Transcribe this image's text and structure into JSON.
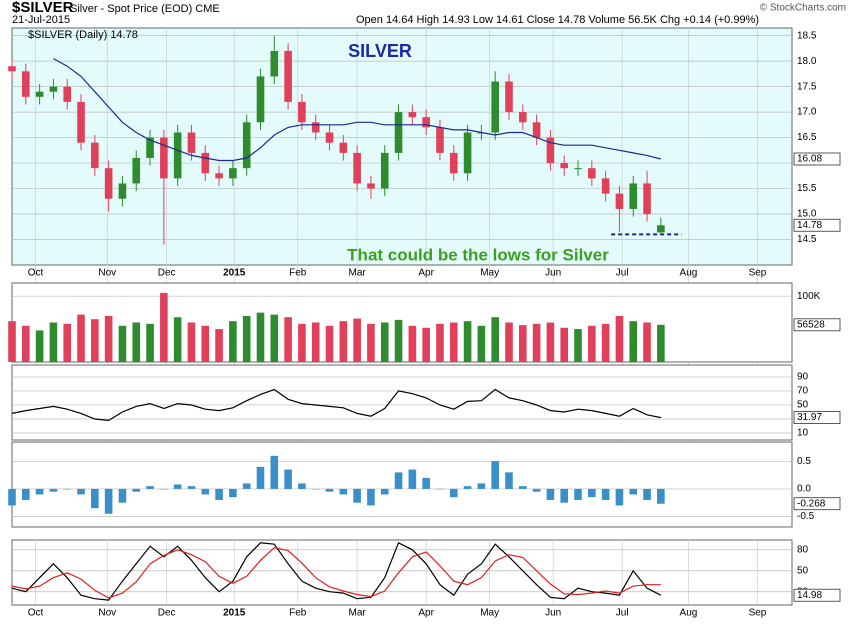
{
  "header": {
    "symbol": "$SILVER",
    "name": "Silver - Spot Price (EOD) CME",
    "date": "21-Jul-2015",
    "stats": "Open 14.64  High 14.93  Low 14.61  Close 14.78  Volume 56.5K  Chg +0.14 (+0.99%)",
    "credit": "© StockCharts.com"
  },
  "chart_data": [
    {
      "type": "candlestick",
      "title": "SILVER",
      "legend": "$SILVER (Daily) 14.78",
      "annotation": "That could be the lows for Silver",
      "background": "#e4fbfb",
      "up_color": "#2e8b2e",
      "down_color": "#e0405a",
      "xlim": [
        0,
        56.5
      ],
      "xticks": [
        {
          "value": 1.7,
          "label": "Oct"
        },
        {
          "value": 6.9,
          "label": "Nov"
        },
        {
          "value": 11.2,
          "label": "Dec"
        },
        {
          "value": 16.1,
          "label": "2015"
        },
        {
          "value": 20.7,
          "label": "Feb"
        },
        {
          "value": 25,
          "label": "Mar"
        },
        {
          "value": 30,
          "label": "Apr"
        },
        {
          "value": 34.6,
          "label": "May"
        },
        {
          "value": 39.2,
          "label": "Jun"
        },
        {
          "value": 44.2,
          "label": "Jul"
        },
        {
          "value": 49,
          "label": "Aug"
        },
        {
          "value": 54,
          "label": "Sep"
        }
      ],
      "ylim": [
        14.0,
        18.65
      ],
      "yticks": [
        {
          "value": 14.5,
          "label": "14.5"
        },
        {
          "value": 15,
          "label": "15.0"
        },
        {
          "value": 15.5,
          "label": "15.5"
        },
        {
          "value": 16,
          "label": "16.0"
        },
        {
          "value": 16.5,
          "label": "16.5"
        },
        {
          "value": 17,
          "label": "17.0"
        },
        {
          "value": 17.5,
          "label": "17.5"
        },
        {
          "value": 18,
          "label": "18.0"
        },
        {
          "value": 18.5,
          "label": "18.5"
        }
      ],
      "open": [
        17.9,
        17.8,
        17.3,
        17.4,
        17.5,
        17.2,
        16.4,
        15.9,
        15.3,
        15.6,
        16.1,
        16.5,
        15.7,
        16.6,
        16.2,
        15.8,
        15.7,
        15.9,
        16.8,
        17.7,
        18.2,
        17.2,
        16.8,
        16.6,
        16.4,
        16.2,
        15.6,
        15.5,
        16.2,
        17.0,
        16.9,
        16.7,
        16.2,
        15.8,
        16.6,
        16.6,
        17.6,
        17.0,
        16.8,
        16.5,
        16.0,
        15.9,
        15.9,
        15.7,
        15.4,
        15.1,
        15.6,
        14.64
      ],
      "high": [
        18.05,
        17.95,
        17.55,
        17.65,
        17.65,
        17.35,
        16.55,
        16.05,
        15.75,
        16.25,
        16.65,
        16.65,
        16.75,
        16.75,
        16.35,
        15.95,
        16.05,
        16.95,
        17.85,
        18.5,
        18.35,
        17.35,
        16.95,
        16.75,
        16.55,
        16.35,
        15.75,
        16.35,
        17.15,
        17.15,
        17.05,
        16.85,
        16.35,
        16.75,
        16.75,
        17.8,
        17.75,
        17.15,
        16.95,
        16.65,
        16.15,
        16.05,
        16.05,
        15.85,
        15.55,
        15.75,
        15.85,
        14.93
      ],
      "low": [
        17.65,
        17.15,
        17.15,
        17.25,
        17.05,
        16.25,
        15.75,
        15.05,
        15.15,
        15.45,
        15.95,
        14.4,
        15.55,
        16.05,
        15.65,
        15.55,
        15.55,
        15.75,
        16.65,
        17.55,
        17.05,
        16.65,
        16.45,
        16.25,
        16.05,
        15.45,
        15.3,
        15.35,
        16.05,
        16.75,
        16.55,
        16.05,
        15.65,
        15.65,
        16.45,
        16.45,
        16.85,
        16.65,
        16.35,
        15.85,
        15.75,
        15.75,
        15.55,
        15.25,
        14.65,
        14.95,
        14.85,
        14.61
      ],
      "close": [
        17.8,
        17.3,
        17.4,
        17.5,
        17.2,
        16.4,
        15.9,
        15.3,
        15.6,
        16.1,
        16.5,
        15.7,
        16.6,
        16.2,
        15.8,
        15.7,
        15.9,
        16.8,
        17.7,
        18.2,
        17.2,
        16.8,
        16.6,
        16.4,
        16.2,
        15.6,
        15.5,
        16.2,
        17.0,
        16.9,
        16.7,
        16.2,
        15.8,
        16.6,
        16.6,
        17.6,
        17.0,
        16.8,
        16.5,
        16.0,
        15.9,
        15.9,
        15.7,
        15.4,
        15.1,
        15.6,
        15.0,
        14.78
      ],
      "close_label": "14.78",
      "series": [
        {
          "color": "#1a2a8a",
          "last_label": "16.08",
          "values": [
            null,
            null,
            null,
            18.05,
            17.9,
            17.7,
            17.4,
            17.1,
            16.8,
            16.6,
            16.45,
            16.35,
            16.25,
            16.15,
            16.1,
            16.05,
            16.05,
            16.1,
            16.3,
            16.55,
            16.7,
            16.75,
            16.75,
            16.75,
            16.75,
            16.8,
            16.8,
            16.75,
            16.75,
            16.75,
            16.75,
            16.7,
            16.65,
            16.65,
            16.6,
            16.55,
            16.6,
            16.6,
            16.5,
            16.4,
            16.35,
            16.35,
            16.35,
            16.3,
            16.25,
            16.2,
            16.15,
            16.08
          ]
        }
      ],
      "support": {
        "value": 14.6,
        "from": 43.4,
        "to": 48.5,
        "color": "#1a2a8a"
      }
    },
    {
      "type": "volume",
      "background": "#ffffff",
      "ylim": [
        0,
        120000
      ],
      "yticks": [
        {
          "value": 100000,
          "label": "100K"
        }
      ],
      "last_label": "56528",
      "values": [
        62000,
        55000,
        48000,
        60000,
        58000,
        72000,
        65000,
        70000,
        55000,
        60000,
        58000,
        105000,
        68000,
        60000,
        55000,
        50000,
        62000,
        70000,
        75000,
        72000,
        68000,
        58000,
        60000,
        55000,
        62000,
        66000,
        58000,
        60000,
        64000,
        55000,
        52000,
        58000,
        60000,
        62000,
        55000,
        68000,
        60000,
        56000,
        58000,
        60000,
        52000,
        50000,
        55000,
        58000,
        70000,
        62000,
        60000,
        56528
      ]
    },
    {
      "type": "line",
      "background": "#ffffff",
      "ylim": [
        0,
        107
      ],
      "yticks": [
        10,
        30,
        50,
        70,
        90
      ],
      "series": [
        {
          "color": "#000000",
          "last_label": "31.97",
          "values": [
            38,
            42,
            45,
            48,
            44,
            38,
            30,
            28,
            40,
            48,
            52,
            45,
            52,
            50,
            44,
            42,
            46,
            56,
            65,
            72,
            58,
            52,
            50,
            48,
            46,
            38,
            34,
            45,
            70,
            66,
            60,
            50,
            44,
            55,
            56,
            72,
            60,
            56,
            50,
            42,
            40,
            44,
            42,
            38,
            34,
            45,
            36,
            31.97
          ]
        }
      ]
    },
    {
      "type": "histogram",
      "background": "#ffffff",
      "color": "#3a8fc8",
      "ylim": [
        -0.69,
        0.85
      ],
      "yticks": [
        {
          "value": 0.5,
          "label": "0.5"
        },
        {
          "value": 0,
          "label": "0.0"
        },
        {
          "value": -0.5,
          "label": "-0.5"
        }
      ],
      "last_label": "-0.268",
      "values": [
        -0.3,
        -0.2,
        -0.1,
        -0.05,
        0.0,
        -0.1,
        -0.35,
        -0.45,
        -0.25,
        -0.05,
        0.05,
        0.0,
        0.08,
        0.05,
        -0.1,
        -0.2,
        -0.15,
        0.1,
        0.4,
        0.6,
        0.35,
        0.1,
        0.0,
        -0.05,
        -0.1,
        -0.25,
        -0.3,
        -0.1,
        0.3,
        0.35,
        0.2,
        0.0,
        -0.15,
        0.05,
        0.1,
        0.5,
        0.3,
        0.05,
        -0.05,
        -0.2,
        -0.25,
        -0.2,
        -0.15,
        -0.2,
        -0.3,
        -0.1,
        -0.2,
        -0.268
      ]
    },
    {
      "type": "line",
      "background": "#ffffff",
      "ylim": [
        1,
        94
      ],
      "yticks": [
        20,
        50,
        80
      ],
      "xlim": [
        0,
        56.5
      ],
      "xticks": [
        {
          "value": 1.7,
          "label": "Oct"
        },
        {
          "value": 6.9,
          "label": "Nov"
        },
        {
          "value": 11.2,
          "label": "Dec"
        },
        {
          "value": 16.1,
          "label": "2015"
        },
        {
          "value": 20.7,
          "label": "Feb"
        },
        {
          "value": 25,
          "label": "Mar"
        },
        {
          "value": 30,
          "label": "Apr"
        },
        {
          "value": 34.6,
          "label": "May"
        },
        {
          "value": 39.2,
          "label": "Jun"
        },
        {
          "value": 44.2,
          "label": "Jul"
        },
        {
          "value": 49,
          "label": "Aug"
        },
        {
          "value": 54,
          "label": "Sep"
        }
      ],
      "series": [
        {
          "color": "#000000",
          "last_label": "14.98",
          "values": [
            25,
            20,
            40,
            60,
            40,
            15,
            10,
            8,
            35,
            60,
            85,
            70,
            85,
            65,
            40,
            20,
            35,
            70,
            90,
            88,
            60,
            35,
            25,
            20,
            18,
            10,
            12,
            40,
            90,
            80,
            60,
            30,
            15,
            45,
            60,
            88,
            70,
            50,
            30,
            12,
            10,
            25,
            20,
            18,
            15,
            50,
            25,
            14.98
          ]
        },
        {
          "color": "#e02020",
          "values": [
            28,
            24,
            28,
            40,
            47,
            38,
            22,
            11,
            18,
            34,
            60,
            72,
            80,
            73,
            63,
            42,
            32,
            42,
            65,
            83,
            79,
            61,
            40,
            27,
            21,
            16,
            13,
            21,
            47,
            70,
            77,
            57,
            35,
            30,
            40,
            64,
            73,
            69,
            50,
            31,
            17,
            16,
            18,
            21,
            18,
            28,
            30,
            30
          ]
        }
      ]
    }
  ]
}
